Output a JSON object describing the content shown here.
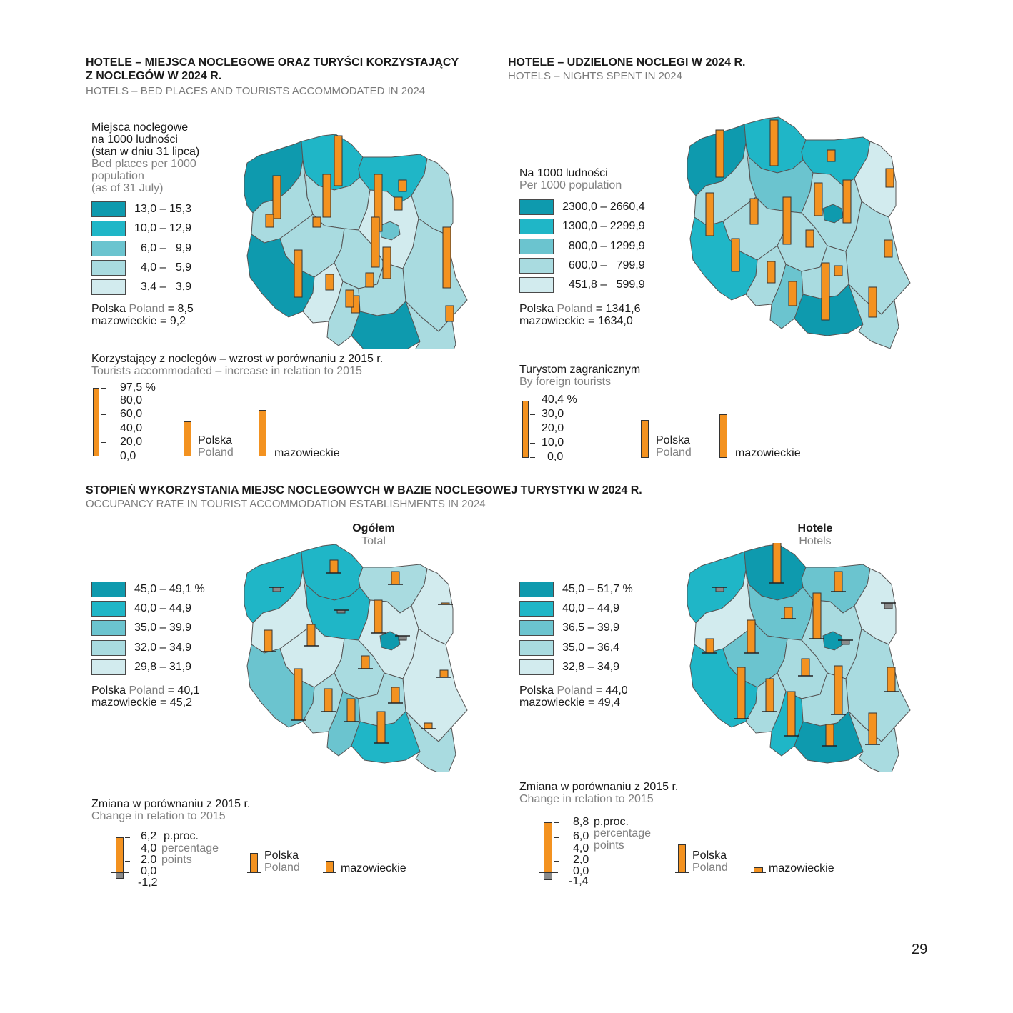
{
  "colors": {
    "c1": "#0e9aae",
    "c2": "#1fb6c7",
    "c3": "#6bc4cf",
    "c4": "#a9dbe0",
    "c5": "#d2ebee",
    "bar": "#f39220",
    "neg": "#8a8a8a"
  },
  "section1": {
    "title_line1": "HOTELE – MIEJSCA NOCLEGOWE ORAZ TURYŚCI KORZYSTAJĄCY",
    "title_line2": "Z NOCLEGÓW W 2024 R.",
    "subtitle": "HOTELS – BED PLACES AND TOURISTS ACCOMMODATED IN 2024",
    "legend_title_pl": [
      "Miejsca noclegowe",
      "na 1000 ludności",
      "(stan w dniu 31 lipca)"
    ],
    "legend_title_en": [
      "Bed places per 1000",
      "population",
      "(as of 31 July)"
    ],
    "ranges": [
      "13,0 – 15,3",
      "10,0 – 12,9",
      "  6,0 –   9,9",
      "  4,0 –   5,9",
      "  3,4 –   3,9"
    ],
    "stat_pl": "Polska",
    "stat_en": "Poland",
    "stat_poland_value": "= 8,5",
    "stat_region": "mazowieckie = 9,2",
    "bars_title_pl": "Korzystający z noclegów – wzrost w porównaniu z 2015 r.",
    "bars_title_en": "Tourists accommodated – increase in relation to 2015",
    "scale_ticks": [
      "97,5 %",
      "80,0",
      "60,0",
      "40,0",
      "20,0",
      "0,0"
    ],
    "cat_poland_pl": "Polska",
    "cat_poland_en": "Poland",
    "cat_region": "mazowieckie"
  },
  "section2": {
    "title": "HOTELE – UDZIELONE NOCLEGI W 2024 R.",
    "subtitle": "HOTELS – NIGHTS SPENT IN 2024",
    "legend_title_pl": "Na 1000 ludności",
    "legend_title_en": "Per 1000 population",
    "ranges": [
      "2300,0 – 2660,4",
      "1300,0 – 2299,9",
      "  800,0 – 1299,9",
      "  600,0 –   799,9",
      "  451,8 –   599,9"
    ],
    "stat_pl": "Polska",
    "stat_en": "Poland",
    "stat_poland_value": "= 1341,6",
    "stat_region": "mazowieckie = 1634,0",
    "bars_title_pl": "Turystom zagranicznym",
    "bars_title_en": "By foreign tourists",
    "scale_ticks": [
      "40,4 %",
      "30,0",
      "20,0",
      "10,0",
      "0,0"
    ],
    "cat_poland_pl": "Polska",
    "cat_poland_en": "Poland",
    "cat_region": "mazowieckie"
  },
  "section3": {
    "title": "STOPIEŃ WYKORZYSTANIA MIEJSC NOCLEGOWYCH W BAZIE NOCLEGOWEJ TURYSTYKI W 2024 R.",
    "subtitle": "OCCUPANCY RATE IN TOURIST ACCOMMODATION ESTABLISHMENTS IN 2024",
    "left": {
      "map_title_pl": "Ogółem",
      "map_title_en": "Total",
      "ranges": [
        "45,0 – 49,1 %",
        "40,0 – 44,9",
        "35,0 – 39,9",
        "32,0 – 34,9",
        "29,8 – 31,9"
      ],
      "stat_pl": "Polska",
      "stat_en": "Poland",
      "stat_poland_value": "= 40,1",
      "stat_region": "mazowieckie = 45,2",
      "bars_title_pl": "Zmiana w porównaniu z 2015 r.",
      "bars_title_en": "Change in relation to 2015",
      "scale_ticks": [
        "6,2",
        "4,0",
        "2,0",
        "0,0",
        "-1,2"
      ],
      "unit_pl": "p.proc.",
      "unit_en_1": "percentage",
      "unit_en_2": "points",
      "cat_poland_pl": "Polska",
      "cat_poland_en": "Poland",
      "cat_region": "mazowieckie"
    },
    "right": {
      "map_title_pl": "Hotele",
      "map_title_en": "Hotels",
      "ranges": [
        "45,0 – 51,7 %",
        "40,0 – 44,9",
        "36,5 – 39,9",
        "35,0 – 36,4",
        "32,8 – 34,9"
      ],
      "stat_pl": "Polska",
      "stat_en": "Poland",
      "stat_poland_value": "= 44,0",
      "stat_region": "mazowieckie = 49,4",
      "bars_title_pl": "Zmiana w porównaniu z 2015 r.",
      "bars_title_en": "Change in relation to 2015",
      "scale_ticks": [
        "8,8",
        "6,0",
        "4,0",
        "2,0",
        "0,0",
        "-1,4"
      ],
      "unit_pl": "p.proc.",
      "unit_en_1": "percentage",
      "unit_en_2": "points",
      "cat_poland_pl": "Polska",
      "cat_poland_en": "Poland",
      "cat_region": "mazowieckie"
    }
  },
  "page_number": "29"
}
